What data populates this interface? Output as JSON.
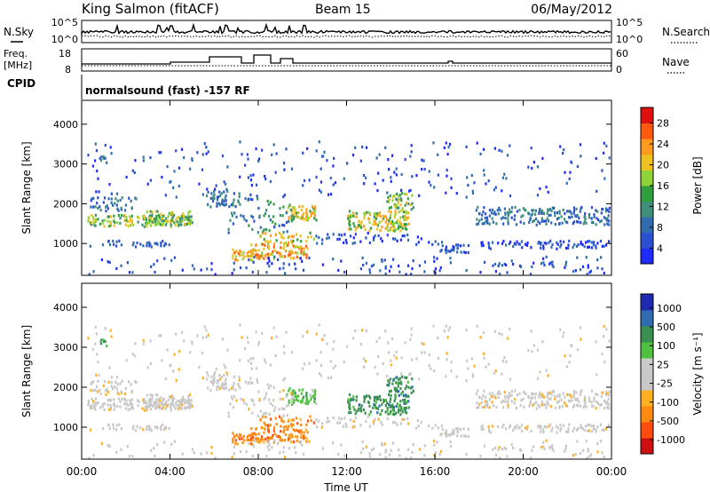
{
  "header": {
    "station": "King Salmon (fitACF)",
    "beam": "Beam 15",
    "date": "06/May/2012"
  },
  "noise_panel": {
    "left_label": "N.Sky",
    "left_ticks": [
      "10^5",
      "10^0"
    ],
    "right_label": "N.Search",
    "right_ticks": [
      "10^5",
      "10^0"
    ]
  },
  "freq_panel": {
    "left_label_1": "Freq.",
    "left_label_2": "[MHz]",
    "left_ticks": [
      "18",
      "8"
    ],
    "right_label": "Nave",
    "right_ticks": [
      "60",
      "0"
    ]
  },
  "cpid_panel": {
    "label": "CPID",
    "text": "normalsound (fast) -157 RF"
  },
  "colors": {
    "power_scale": [
      "#1e2bff",
      "#2a4fd0",
      "#2f6db0",
      "#3f8f7a",
      "#2f9e3c",
      "#8fd33a",
      "#f0c020",
      "#ff9a1e",
      "#ff5a10",
      "#e01010"
    ],
    "velocity_scale": [
      "#d01010",
      "#ff4a10",
      "#ff8a10",
      "#ffb020",
      "#c8c8c8",
      "#c8c8c8",
      "#50c040",
      "#3a9050",
      "#2f6db0",
      "#1e2bb0"
    ]
  },
  "chart_data": [
    {
      "type": "heatmap",
      "name": "power",
      "ylabel": "Slant Range [km]",
      "yticks": [
        "4000",
        "3000",
        "2000",
        "1000"
      ],
      "ytick_values": [
        4000,
        3000,
        2000,
        1000
      ],
      "ylim": [
        200,
        4600
      ],
      "xlim": [
        0,
        24
      ],
      "colorbar_label": "Power [dB]",
      "colorbar_ticks": [
        "28",
        "24",
        "20",
        "16",
        "12",
        "8",
        "4"
      ],
      "colorbar_range": [
        0,
        30
      ]
    },
    {
      "type": "heatmap",
      "name": "velocity",
      "ylabel": "Slant Range [km]",
      "yticks": [
        "4000",
        "3000",
        "2000",
        "1000"
      ],
      "ytick_values": [
        4000,
        3000,
        2000,
        1000
      ],
      "ylim": [
        200,
        4600
      ],
      "xlim": [
        0,
        24
      ],
      "colorbar_label": "Velocity [m s⁻¹]",
      "colorbar_ticks": [
        "1000",
        "500",
        "100",
        "25",
        "-25",
        "-100",
        "-500",
        "-1000"
      ]
    }
  ],
  "x_axis": {
    "label": "Time UT",
    "ticks": [
      "00:00",
      "04:00",
      "08:00",
      "12:00",
      "16:00",
      "20:00",
      "00:00"
    ],
    "tick_values": [
      0,
      4,
      8,
      12,
      16,
      20,
      24
    ]
  }
}
